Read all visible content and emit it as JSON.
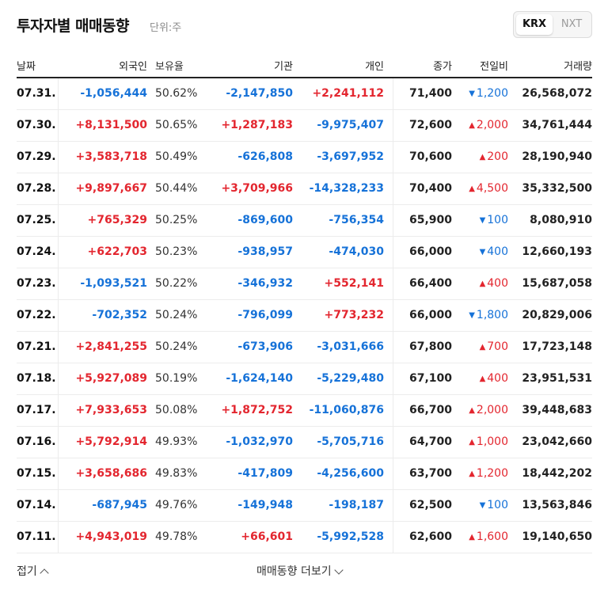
{
  "header": {
    "title": "투자자별 매매동향",
    "unit": "단위:주"
  },
  "exchange": {
    "options": [
      "KRX",
      "NXT"
    ],
    "selected": "KRX"
  },
  "columns": [
    "날짜",
    "외국인",
    "보유율",
    "기관",
    "개인",
    "종가",
    "전일비",
    "거래량"
  ],
  "rows": [
    {
      "date": "07.31.",
      "foreign": "-1,056,444",
      "hold": "50.62%",
      "inst": "-2,147,850",
      "indiv": "+2,241,112",
      "close": "71,400",
      "chg": "1,200",
      "chg_dir": "down",
      "vol": "26,568,072"
    },
    {
      "date": "07.30.",
      "foreign": "+8,131,500",
      "hold": "50.65%",
      "inst": "+1,287,183",
      "indiv": "-9,975,407",
      "close": "72,600",
      "chg": "2,000",
      "chg_dir": "up",
      "vol": "34,761,444"
    },
    {
      "date": "07.29.",
      "foreign": "+3,583,718",
      "hold": "50.49%",
      "inst": "-626,808",
      "indiv": "-3,697,952",
      "close": "70,600",
      "chg": "200",
      "chg_dir": "up",
      "vol": "28,190,940"
    },
    {
      "date": "07.28.",
      "foreign": "+9,897,667",
      "hold": "50.44%",
      "inst": "+3,709,966",
      "indiv": "-14,328,233",
      "close": "70,400",
      "chg": "4,500",
      "chg_dir": "up",
      "vol": "35,332,500"
    },
    {
      "date": "07.25.",
      "foreign": "+765,329",
      "hold": "50.25%",
      "inst": "-869,600",
      "indiv": "-756,354",
      "close": "65,900",
      "chg": "100",
      "chg_dir": "down",
      "vol": "8,080,910"
    },
    {
      "date": "07.24.",
      "foreign": "+622,703",
      "hold": "50.23%",
      "inst": "-938,957",
      "indiv": "-474,030",
      "close": "66,000",
      "chg": "400",
      "chg_dir": "down",
      "vol": "12,660,193"
    },
    {
      "date": "07.23.",
      "foreign": "-1,093,521",
      "hold": "50.22%",
      "inst": "-346,932",
      "indiv": "+552,141",
      "close": "66,400",
      "chg": "400",
      "chg_dir": "up",
      "vol": "15,687,058"
    },
    {
      "date": "07.22.",
      "foreign": "-702,352",
      "hold": "50.24%",
      "inst": "-796,099",
      "indiv": "+773,232",
      "close": "66,000",
      "chg": "1,800",
      "chg_dir": "down",
      "vol": "20,829,006"
    },
    {
      "date": "07.21.",
      "foreign": "+2,841,255",
      "hold": "50.24%",
      "inst": "-673,906",
      "indiv": "-3,031,666",
      "close": "67,800",
      "chg": "700",
      "chg_dir": "up",
      "vol": "17,723,148"
    },
    {
      "date": "07.18.",
      "foreign": "+5,927,089",
      "hold": "50.19%",
      "inst": "-1,624,140",
      "indiv": "-5,229,480",
      "close": "67,100",
      "chg": "400",
      "chg_dir": "up",
      "vol": "23,951,531"
    },
    {
      "date": "07.17.",
      "foreign": "+7,933,653",
      "hold": "50.08%",
      "inst": "+1,872,752",
      "indiv": "-11,060,876",
      "close": "66,700",
      "chg": "2,000",
      "chg_dir": "up",
      "vol": "39,448,683"
    },
    {
      "date": "07.16.",
      "foreign": "+5,792,914",
      "hold": "49.93%",
      "inst": "-1,032,970",
      "indiv": "-5,705,716",
      "close": "64,700",
      "chg": "1,000",
      "chg_dir": "up",
      "vol": "23,042,660"
    },
    {
      "date": "07.15.",
      "foreign": "+3,658,686",
      "hold": "49.83%",
      "inst": "-417,809",
      "indiv": "-4,256,600",
      "close": "63,700",
      "chg": "1,200",
      "chg_dir": "up",
      "vol": "18,442,202"
    },
    {
      "date": "07.14.",
      "foreign": "-687,945",
      "hold": "49.76%",
      "inst": "-149,948",
      "indiv": "-198,187",
      "close": "62,500",
      "chg": "100",
      "chg_dir": "down",
      "vol": "13,563,846"
    },
    {
      "date": "07.11.",
      "foreign": "+4,943,019",
      "hold": "49.78%",
      "inst": "+66,601",
      "indiv": "-5,992,528",
      "close": "62,600",
      "chg": "1,600",
      "chg_dir": "up",
      "vol": "19,140,650"
    }
  ],
  "colors": {
    "up": "#e3262f",
    "down": "#1672d8"
  },
  "footer": {
    "fold_label": "접기",
    "more_label": "매매동향 더보기"
  }
}
